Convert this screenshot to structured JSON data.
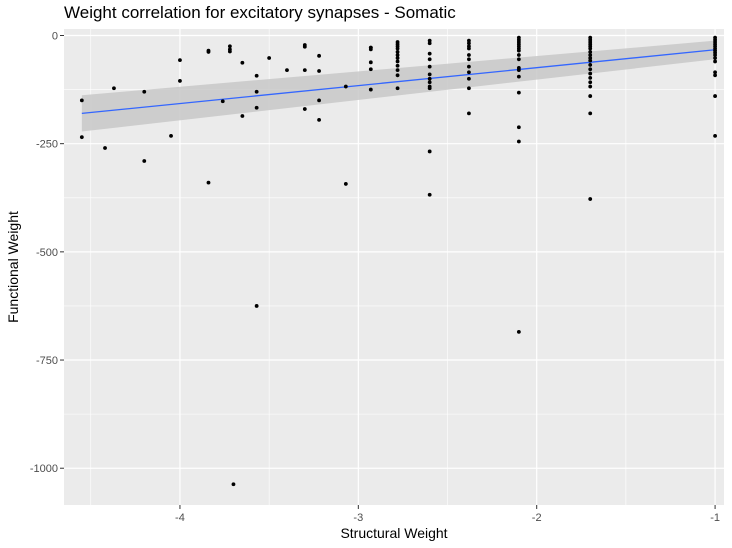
{
  "chart_data": {
    "type": "scatter",
    "title": "Weight correlation for excitatory synapses - Somatic",
    "xlabel": "Structural Weight",
    "ylabel": "Functional Weight",
    "xlim": [
      -4.65,
      -0.95
    ],
    "ylim": [
      -1085,
      15
    ],
    "x_ticks": [
      -4,
      -3,
      -2,
      -1
    ],
    "x_tick_labels": [
      "-4",
      "-3",
      "-2",
      "-1"
    ],
    "y_ticks": [
      0,
      -250,
      -500,
      -750,
      -1000
    ],
    "y_tick_labels": [
      "0",
      "-250",
      "-500",
      "-750",
      "-1000"
    ],
    "grid": true,
    "legend": "none",
    "colors": {
      "panel": "#ebebeb",
      "grid": "#ffffff",
      "points": "#000000",
      "fit_line": "#3366ff",
      "confidence_band": "#c8c8c8"
    },
    "fit": {
      "type": "linear",
      "x": [
        -4.55,
        -1.0
      ],
      "y": [
        -180,
        -33
      ],
      "ci_lower": [
        -222,
        -55
      ],
      "ci_upper": [
        -138,
        -12
      ]
    },
    "points": {
      "x": [
        -4.55,
        -4.55,
        -4.42,
        -4.37,
        -4.2,
        -4.2,
        -4.05,
        -4.0,
        -4.0,
        -3.84,
        -3.84,
        -3.84,
        -3.76,
        -3.72,
        -3.72,
        -3.72,
        -3.7,
        -3.65,
        -3.65,
        -3.57,
        -3.57,
        -3.57,
        -3.57,
        -3.5,
        -3.4,
        -3.3,
        -3.3,
        -3.3,
        -3.3,
        -3.22,
        -3.22,
        -3.22,
        -3.22,
        -3.07,
        -3.07,
        -2.93,
        -2.93,
        -2.93,
        -2.93,
        -2.93,
        -2.93,
        -2.78,
        -2.78,
        -2.78,
        -2.78,
        -2.78,
        -2.78,
        -2.78,
        -2.78,
        -2.78,
        -2.78,
        -2.78,
        -2.78,
        -2.6,
        -2.6,
        -2.6,
        -2.6,
        -2.6,
        -2.6,
        -2.6,
        -2.6,
        -2.6,
        -2.6,
        -2.6,
        -2.6,
        -2.38,
        -2.38,
        -2.38,
        -2.38,
        -2.38,
        -2.38,
        -2.38,
        -2.38,
        -2.38,
        -2.38,
        -2.38,
        -2.1,
        -2.1,
        -2.1,
        -2.1,
        -2.1,
        -2.1,
        -2.1,
        -2.1,
        -2.1,
        -2.1,
        -2.1,
        -2.1,
        -2.1,
        -2.1,
        -2.1,
        -2.1,
        -1.7,
        -1.7,
        -1.7,
        -1.7,
        -1.7,
        -1.7,
        -1.7,
        -1.7,
        -1.7,
        -1.7,
        -1.7,
        -1.7,
        -1.7,
        -1.7,
        -1.7,
        -1.7,
        -1.7,
        -1.7,
        -1.7,
        -1.0,
        -1.0,
        -1.0,
        -1.0,
        -1.0,
        -1.0,
        -1.0,
        -1.0,
        -1.0,
        -1.0,
        -1.0,
        -1.0,
        -1.0,
        -1.0,
        -1.0
      ],
      "y": [
        -150,
        -235,
        -260,
        -122,
        -130,
        -290,
        -232,
        -57,
        -105,
        -35,
        -38,
        -340,
        -152,
        -25,
        -32,
        -37,
        -1037,
        -63,
        -186,
        -93,
        -130,
        -167,
        -625,
        -52,
        -80,
        -22,
        -26,
        -80,
        -170,
        -47,
        -82,
        -150,
        -195,
        -118,
        -343,
        -28,
        -32,
        -62,
        -78,
        -125,
        -28,
        -15,
        -20,
        -25,
        -30,
        -38,
        -45,
        -52,
        -60,
        -70,
        -80,
        -92,
        -122,
        -12,
        -18,
        -42,
        -55,
        -72,
        -90,
        -100,
        -108,
        -118,
        -122,
        -268,
        -368,
        -12,
        -18,
        -25,
        -30,
        -45,
        -55,
        -72,
        -85,
        -100,
        -122,
        -180,
        -5,
        -10,
        -15,
        -20,
        -25,
        -30,
        -35,
        -45,
        -55,
        -75,
        -80,
        -95,
        -132,
        -212,
        -245,
        -685,
        -5,
        -10,
        -15,
        -20,
        -25,
        -30,
        -38,
        -45,
        -52,
        -58,
        -68,
        -78,
        -88,
        -98,
        -108,
        -118,
        -140,
        -180,
        -378,
        -5,
        -10,
        -15,
        -20,
        -25,
        -30,
        -35,
        -40,
        -45,
        -52,
        -60,
        -85,
        -92,
        -140,
        -232
      ]
    }
  }
}
